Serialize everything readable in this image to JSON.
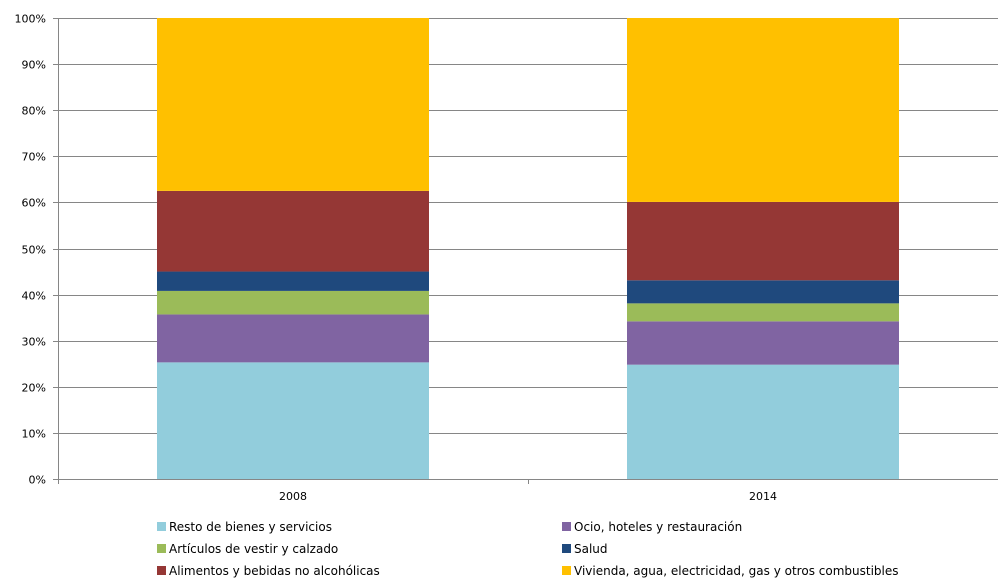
{
  "chart_data": {
    "type": "bar",
    "stacked": true,
    "percent": true,
    "title": "",
    "xlabel": "",
    "ylabel": "",
    "categories": [
      "2008",
      "2014"
    ],
    "ylim": [
      0,
      100
    ],
    "y_ticks": [
      "0%",
      "10%",
      "20%",
      "30%",
      "40%",
      "50%",
      "60%",
      "70%",
      "80%",
      "90%",
      "100%"
    ],
    "grid": true,
    "legend_position": "bottom",
    "series": [
      {
        "name": "Resto de bienes y servicios",
        "color": "#92CDDC",
        "values": [
          25.3,
          24.8
        ]
      },
      {
        "name": "Ocio, hoteles y restauración",
        "color": "#8064A2",
        "values": [
          10.4,
          9.4
        ]
      },
      {
        "name": "Artículos de vestir y calzado",
        "color": "#9BBB59",
        "values": [
          5.1,
          3.9
        ]
      },
      {
        "name": "Salud",
        "color": "#1F497D",
        "values": [
          4.2,
          5.0
        ]
      },
      {
        "name": "Alimentos y bebidas no alcohólicas",
        "color": "#953735",
        "values": [
          17.5,
          17.0
        ]
      },
      {
        "name": "Vivienda, agua, electricidad, gas y otros combustibles",
        "color": "#FFC000",
        "values": [
          37.5,
          39.9
        ]
      }
    ]
  }
}
